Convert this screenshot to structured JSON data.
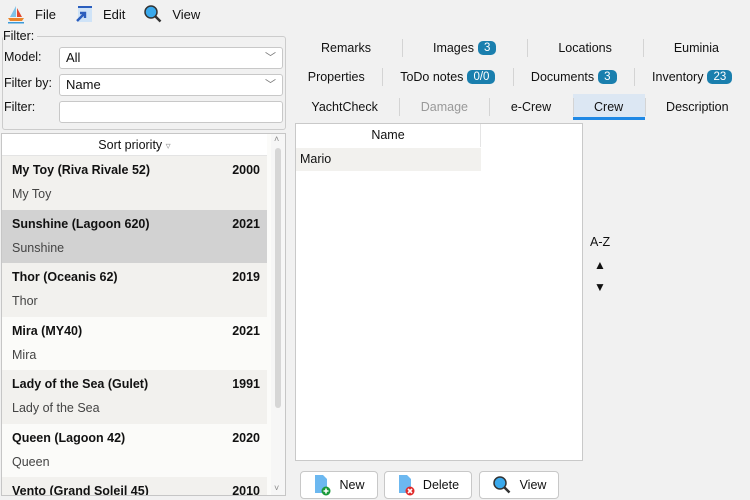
{
  "menu": {
    "file": "File",
    "edit": "Edit",
    "view": "View"
  },
  "filter": {
    "group_label": "Filter:",
    "model_label": "Model:",
    "model_value": "All",
    "filter_by_label": "Filter by:",
    "filter_by_value": "Name",
    "filter_label": "Filter:",
    "filter_value": ""
  },
  "list": {
    "header": "Sort priority",
    "sort_icon": "▿",
    "items": [
      {
        "title": "My Toy (Riva Rivale 52)",
        "year": "2000",
        "subtitle": "My Toy"
      },
      {
        "title": "Sunshine (Lagoon 620)",
        "year": "2021",
        "subtitle": "Sunshine"
      },
      {
        "title": "Thor (Oceanis 62)",
        "year": "2019",
        "subtitle": "Thor"
      },
      {
        "title": "Mira (MY40)",
        "year": "2021",
        "subtitle": "Mira"
      },
      {
        "title": "Lady of the Sea (Gulet)",
        "year": "1991",
        "subtitle": "Lady of the Sea"
      },
      {
        "title": "Queen  (Lagoon 42)",
        "year": "2020",
        "subtitle": "Queen"
      },
      {
        "title": "Vento (Grand Soleil 45)",
        "year": "2010",
        "subtitle": ""
      }
    ],
    "selected_index": 1
  },
  "tabs": {
    "row1": [
      {
        "label": "Remarks"
      },
      {
        "label": "Images",
        "badge": "3"
      },
      {
        "label": "Locations"
      },
      {
        "label": "Euminia"
      }
    ],
    "row2": [
      {
        "label": "Properties"
      },
      {
        "label": "ToDo notes",
        "badge": "0/0"
      },
      {
        "label": "Documents",
        "badge": "3"
      },
      {
        "label": "Inventory",
        "badge": "23"
      }
    ],
    "row3": [
      {
        "label": "YachtCheck"
      },
      {
        "label": "Damage",
        "disabled": true
      },
      {
        "label": "e-Crew"
      },
      {
        "label": "Crew",
        "selected": true
      },
      {
        "label": "Description"
      }
    ]
  },
  "crew_table": {
    "header": "Name",
    "rows": [
      "Mario"
    ]
  },
  "sort": {
    "label": "A-Z",
    "up": "▲",
    "down": "▼"
  },
  "buttons": {
    "new": "New",
    "delete": "Delete",
    "view": "View"
  },
  "colors": {
    "accent": "#1e88e5",
    "badge": "#1a7fae",
    "selected_row": "#d2d2d2"
  }
}
